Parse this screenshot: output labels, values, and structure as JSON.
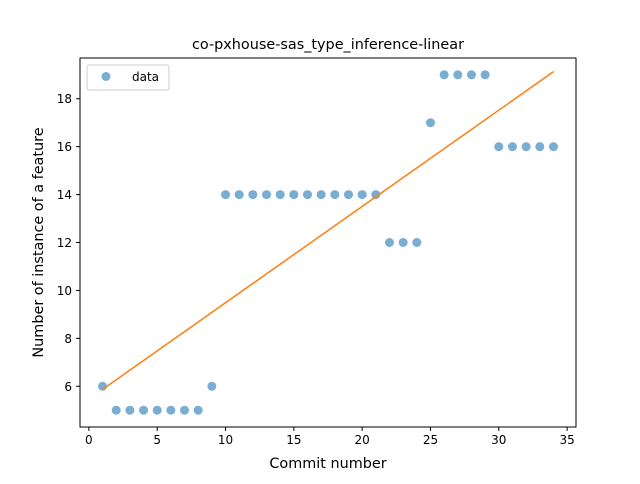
{
  "chart_data": {
    "type": "scatter",
    "title": "co-pxhouse-sas_type_inference-linear",
    "xlabel": "Commit number",
    "ylabel": "Number of instance of a feature",
    "xlim": [
      -0.65,
      35.65
    ],
    "ylim": [
      4.3,
      19.7
    ],
    "xticks": [
      0,
      5,
      10,
      15,
      20,
      25,
      30,
      35
    ],
    "yticks": [
      6,
      8,
      10,
      12,
      14,
      16,
      18
    ],
    "grid": false,
    "legend": {
      "placement": "top-left",
      "entries": [
        "data"
      ]
    },
    "series": [
      {
        "name": "data",
        "kind": "points",
        "color": "#1f77b4",
        "x": [
          1,
          2,
          3,
          4,
          5,
          6,
          7,
          8,
          9,
          10,
          11,
          12,
          13,
          14,
          15,
          16,
          17,
          18,
          19,
          20,
          21,
          22,
          23,
          24,
          25,
          26,
          27,
          28,
          29,
          30,
          31,
          32,
          33,
          34
        ],
        "y": [
          6,
          5,
          5,
          5,
          5,
          5,
          5,
          5,
          6,
          14,
          14,
          14,
          14,
          14,
          14,
          14,
          14,
          14,
          14,
          14,
          14,
          12,
          12,
          12,
          17,
          19,
          19,
          19,
          19,
          16,
          16,
          16,
          16,
          16
        ]
      },
      {
        "kind": "line",
        "color": "#ff7f0e",
        "x": [
          1,
          34
        ],
        "y": [
          5.87,
          19.13
        ]
      }
    ]
  }
}
